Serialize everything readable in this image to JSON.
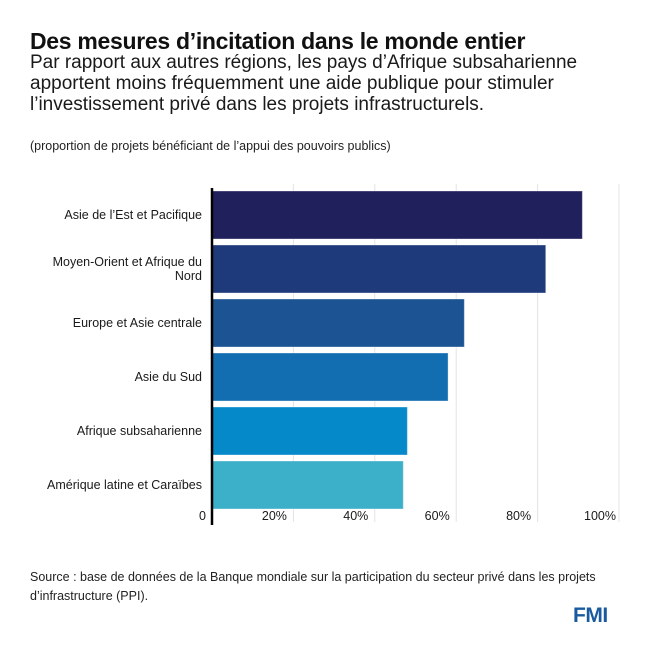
{
  "header": {
    "title": "Des mesures d’incitation dans le monde entier",
    "subtitle": "Par rapport aux autres régions, les pays d’Afrique subsaharienne apportent moins fréquemment une aide publique pour stimuler l’investissement privé dans les projets infrastructurels.",
    "note": "(proportion de projets bénéficiant de l’appui des pouvoirs publics)"
  },
  "footer": {
    "source": "Source : base de données de la Banque mondiale sur la participation du secteur privé dans les projets d’infrastructure (PPI).",
    "logo": "FMI"
  },
  "chart_data": {
    "type": "bar",
    "orientation": "horizontal",
    "title": "Des mesures d’incitation dans le monde entier",
    "xlabel": "",
    "ylabel": "",
    "unit": "%",
    "xlim": [
      0,
      100
    ],
    "grid": true,
    "categories": [
      [
        "Asie de l’Est et Pacifique"
      ],
      [
        "Moyen-Orient et Afrique du",
        "Nord"
      ],
      [
        "Europe et Asie centrale"
      ],
      [
        "Asie du Sud"
      ],
      [
        "Afrique subsaharienne"
      ],
      [
        "Amérique latine et Caraïbes"
      ]
    ],
    "values": [
      91,
      82,
      62,
      58,
      48,
      47
    ],
    "colors": [
      "#20205c",
      "#1e3a7a",
      "#1b5393",
      "#136db1",
      "#0589c9",
      "#3cafc9"
    ],
    "ticks": [
      0,
      20,
      40,
      60,
      80,
      100
    ],
    "tick_labels": [
      "0",
      "20%",
      "40%",
      "60%",
      "80%",
      "100%"
    ]
  }
}
